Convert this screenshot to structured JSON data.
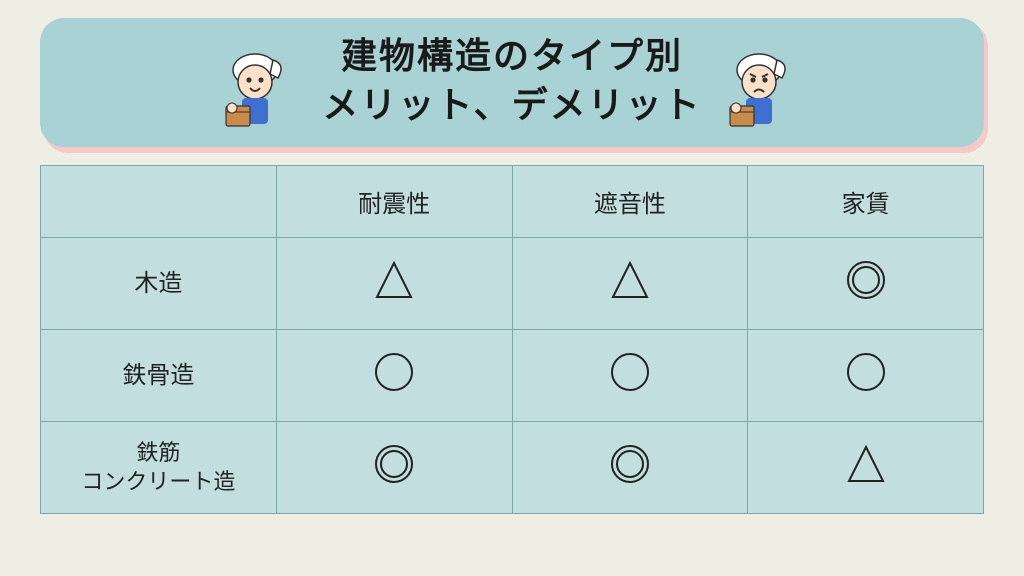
{
  "colors": {
    "page_bg": "#efeee4",
    "header_bg": "#a8d2d4",
    "header_shadow": "#f6c9c9",
    "title_text": "#1a1a1a",
    "table_bg": "#c2dedf",
    "table_border": "#7fa7a8",
    "cell_text": "#222222",
    "symbol_stroke": "#222222"
  },
  "title": {
    "line1": "建物構造のタイプ別",
    "line2": "メリット、デメリット"
  },
  "table": {
    "columns": [
      "",
      "耐震性",
      "遮音性",
      "家賃"
    ],
    "rows": [
      {
        "label": "木造",
        "cells": [
          "triangle",
          "triangle",
          "double_circle"
        ]
      },
      {
        "label": "鉄骨造",
        "cells": [
          "circle",
          "circle",
          "circle"
        ]
      },
      {
        "label": "鉄筋\nコンクリート造",
        "cells": [
          "double_circle",
          "double_circle",
          "triangle"
        ]
      }
    ],
    "symbol_size": 40,
    "symbol_stroke_width": 2
  },
  "mascots": {
    "left": "chef-happy-icon",
    "right": "chef-worried-icon"
  }
}
